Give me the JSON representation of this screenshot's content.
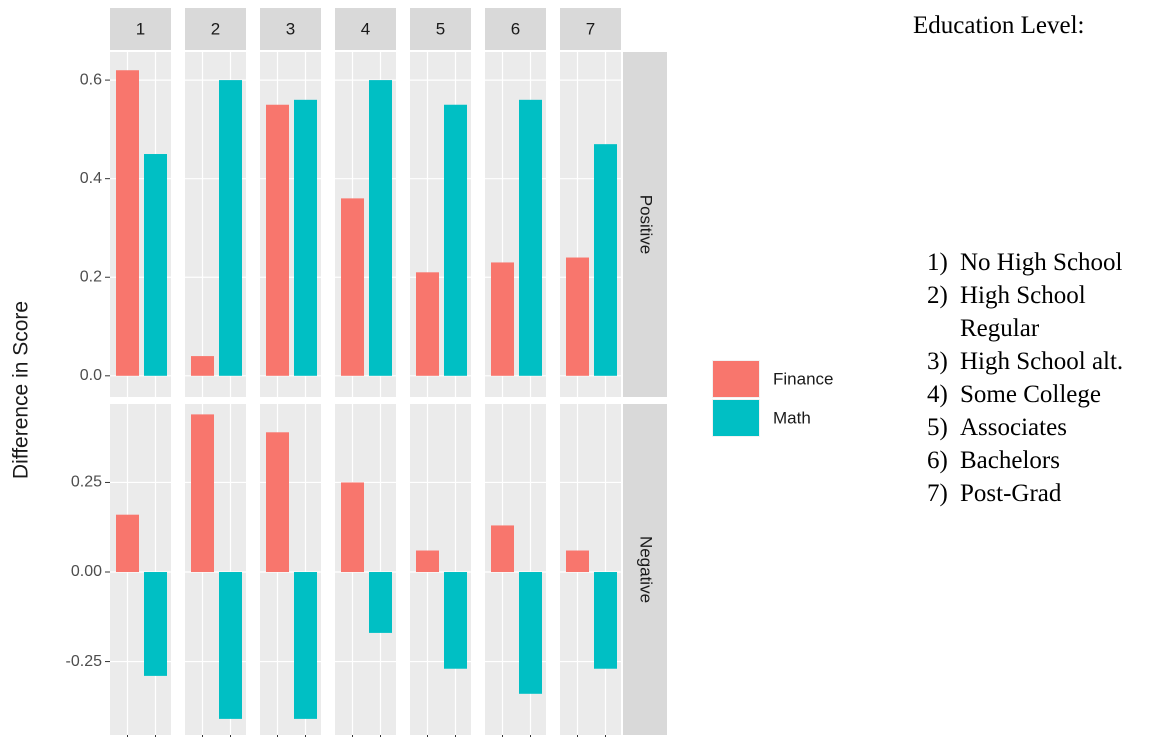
{
  "chart_data": {
    "type": "bar",
    "y_label": "Difference in Score",
    "columns": [
      "1",
      "2",
      "3",
      "4",
      "5",
      "6",
      "7"
    ],
    "series": [
      {
        "name": "Finance",
        "color": "#F8766D"
      },
      {
        "name": "Math",
        "color": "#00BFC4"
      }
    ],
    "panels": [
      {
        "name": "Positive",
        "ylim": [
          -0.043,
          0.657
        ],
        "yticks": [
          {
            "value": 0,
            "label": "0.0"
          },
          0.2,
          0.4,
          0.6
        ],
        "values": [
          [
            0.62,
            0.04,
            0.55,
            0.36,
            0.21,
            0.23,
            0.24
          ],
          [
            0.45,
            0.6,
            0.56,
            0.6,
            0.55,
            0.56,
            0.47
          ]
        ]
      },
      {
        "name": "Negative",
        "ylim": [
          -0.455,
          0.469
        ],
        "yticks": [
          -0.25,
          {
            "value": 0,
            "label": "0.00"
          },
          0.25
        ],
        "values": [
          [
            0.16,
            0.44,
            0.39,
            0.25,
            0.06,
            0.13,
            0.06
          ],
          [
            -0.29,
            -0.41,
            -0.41,
            -0.17,
            -0.27,
            -0.34,
            -0.27
          ]
        ]
      }
    ],
    "grid": true,
    "annotation": {
      "title": "Education Level:",
      "items": [
        {
          "number": "1)",
          "text": "No High School"
        },
        {
          "number": "2)",
          "text": "High School Regular"
        },
        {
          "number": "3)",
          "text": "High School alt."
        },
        {
          "number": "4)",
          "text": "Some College"
        },
        {
          "number": "5)",
          "text": "Associates"
        },
        {
          "number": "6)",
          "text": "Bachelors"
        },
        {
          "number": "7)",
          "text": "Post-Grad"
        }
      ]
    }
  }
}
